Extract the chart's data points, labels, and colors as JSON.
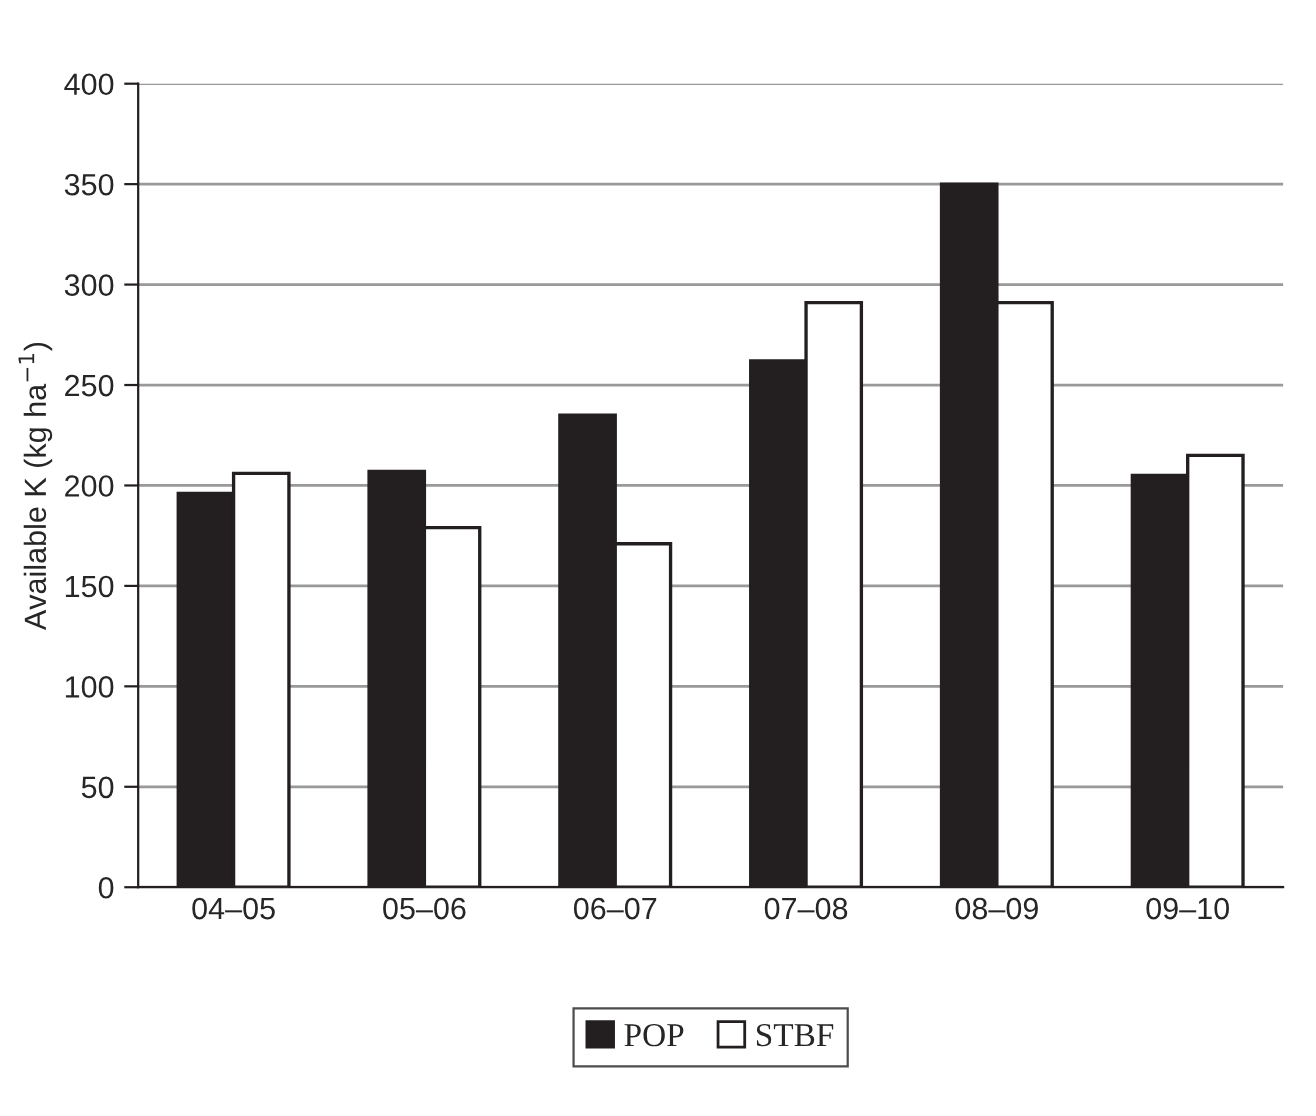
{
  "chart_data": {
    "type": "bar",
    "ylabel": "Available K (kg ha$^{−1}$)",
    "categories": [
      "04–05",
      "05–06",
      "06–07",
      "07–08",
      "08–09",
      "09–10"
    ],
    "series": [
      {
        "name": "POP",
        "color": "#231f20",
        "values": [
          196,
          207,
          235,
          262,
          350,
          205
        ]
      },
      {
        "name": "STBF",
        "color": "#ffffff",
        "values": [
          206,
          179,
          171,
          291,
          291,
          215
        ]
      }
    ],
    "ylim": [
      0,
      400
    ],
    "yticks": [
      0,
      50,
      100,
      150,
      200,
      250,
      300,
      350,
      400
    ],
    "grid": "y",
    "legend": "bottom"
  }
}
